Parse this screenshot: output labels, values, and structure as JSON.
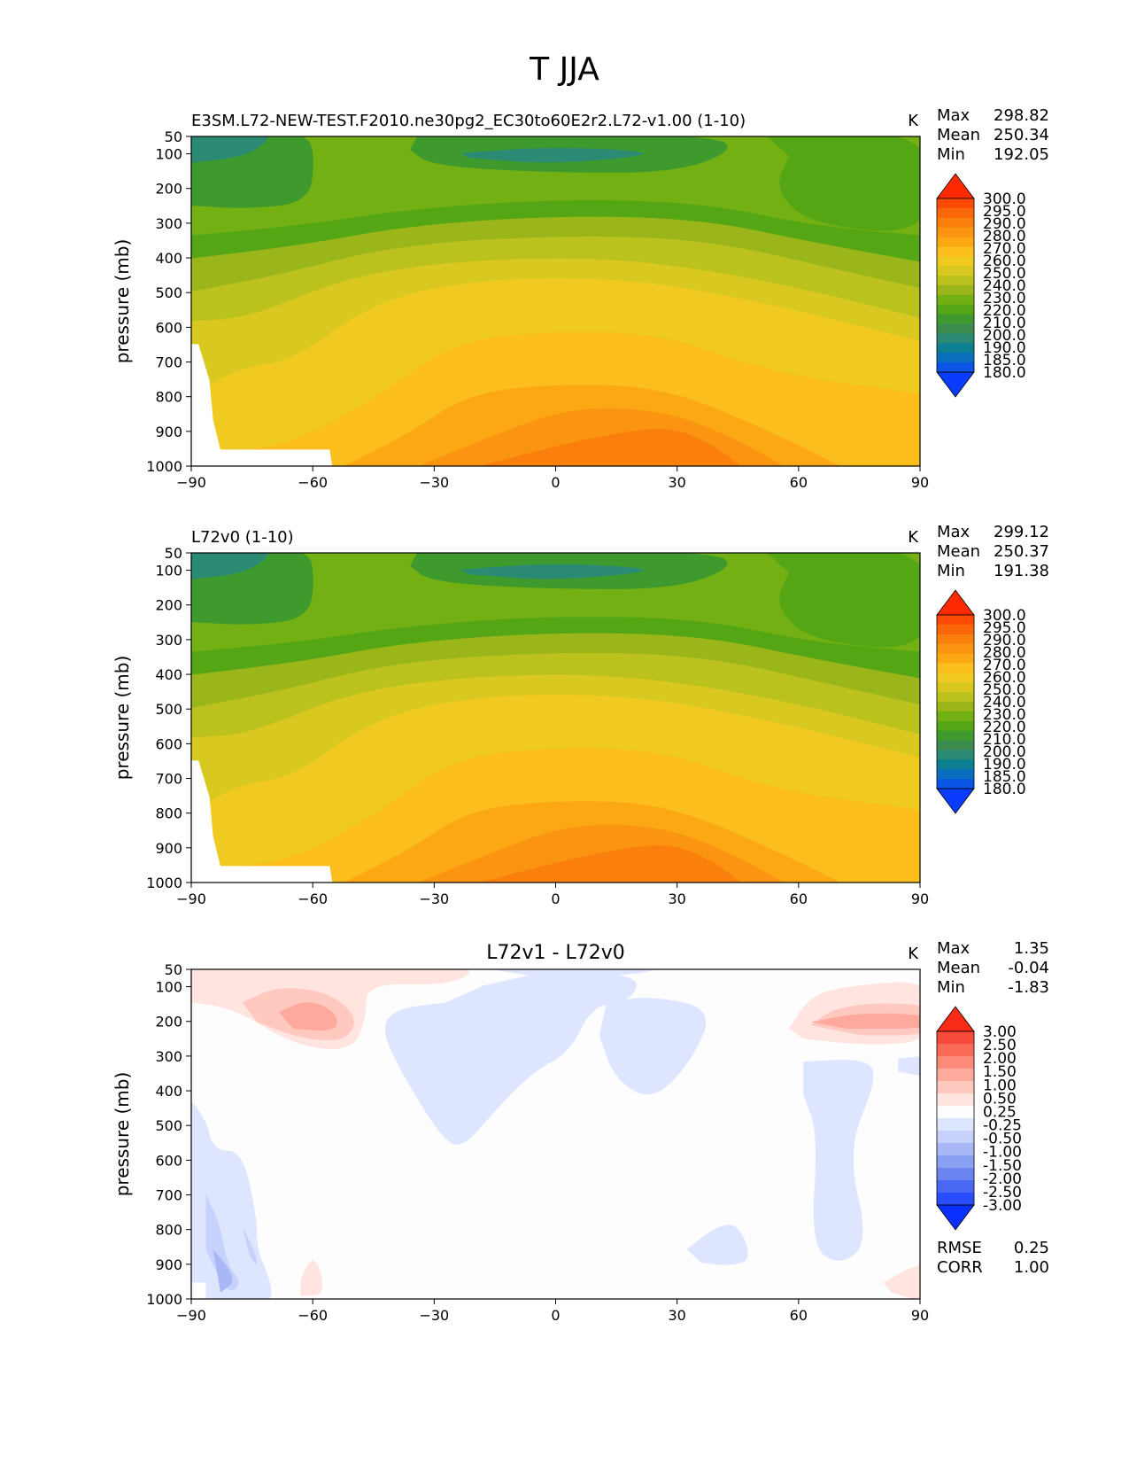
{
  "figure_title": "T JJA",
  "colors": {
    "abs_levels": [
      "#0a3cff",
      "#0a55e6",
      "#0a6ebe",
      "#0d7f92",
      "#2a8a74",
      "#3b8b4e",
      "#3e9a2c",
      "#55a614",
      "#73b014",
      "#9ab61a",
      "#bbc21e",
      "#d9c820",
      "#f0ca20",
      "#fbbe1c",
      "#fba814",
      "#fb9410",
      "#fb7f0c",
      "#fb6608",
      "#fb4a06",
      "#ff2a00"
    ],
    "diff_levels": [
      "#0a30ff",
      "#2a4dfb",
      "#4a68f4",
      "#6a84f0",
      "#8aa0f2",
      "#a8b8f6",
      "#c6d2fb",
      "#dde5ff",
      "#fdfdfd",
      "#ffe4e0",
      "#ffc9c0",
      "#fdaa9c",
      "#fb8a78",
      "#f96a58",
      "#f84a3a",
      "#f82a18"
    ]
  },
  "panels": [
    {
      "id": "test",
      "title_left": "E3SM.L72-NEW-TEST.F2010.ne30pg2_EC30to60E2r2.L72-v1.00 (1-10)",
      "title_center": "",
      "units": "K",
      "stats": [
        {
          "label": "Max",
          "value": "298.82"
        },
        {
          "label": "Mean",
          "value": "250.34"
        },
        {
          "label": "Min",
          "value": "192.05"
        }
      ],
      "colorbar_labels": [
        "300.0",
        "295.0",
        "290.0",
        "280.0",
        "270.0",
        "260.0",
        "250.0",
        "240.0",
        "230.0",
        "220.0",
        "210.0",
        "200.0",
        "190.0",
        "185.0",
        "180.0"
      ],
      "extra_stats": []
    },
    {
      "id": "ref",
      "title_left": "L72v0 (1-10)",
      "title_center": "",
      "units": "K",
      "stats": [
        {
          "label": "Max",
          "value": "299.12"
        },
        {
          "label": "Mean",
          "value": "250.37"
        },
        {
          "label": "Min",
          "value": "191.38"
        }
      ],
      "colorbar_labels": [
        "300.0",
        "295.0",
        "290.0",
        "280.0",
        "270.0",
        "260.0",
        "250.0",
        "240.0",
        "230.0",
        "220.0",
        "210.0",
        "200.0",
        "190.0",
        "185.0",
        "180.0"
      ],
      "extra_stats": []
    },
    {
      "id": "diff",
      "title_left": "",
      "title_center": "L72v1 - L72v0",
      "units": "K",
      "stats": [
        {
          "label": "Max",
          "value": "1.35"
        },
        {
          "label": "Mean",
          "value": "-0.04"
        },
        {
          "label": "Min",
          "value": "-1.83"
        }
      ],
      "colorbar_labels": [
        "3.00",
        "2.50",
        "2.00",
        "1.50",
        "1.00",
        "0.50",
        "0.25",
        "-0.25",
        "-0.50",
        "-1.00",
        "-1.50",
        "-2.00",
        "-2.50",
        "-3.00"
      ],
      "extra_stats": [
        {
          "label": "RMSE",
          "value": "0.25"
        },
        {
          "label": "CORR",
          "value": "1.00"
        }
      ]
    }
  ],
  "chart_data": [
    {
      "type": "heatmap",
      "title": "E3SM.L72-NEW-TEST.F2010.ne30pg2_EC30to60E2r2.L72-v1.00 (1-10)",
      "xlabel": "",
      "ylabel": "pressure (mb)",
      "xlim": [
        -90,
        90
      ],
      "ylim": [
        1000,
        50
      ],
      "xticks": [
        -90,
        -60,
        -30,
        0,
        30,
        60,
        90
      ],
      "xtick_labels": [
        "−90",
        "−60",
        "−30",
        "0",
        "30",
        "60",
        "90"
      ],
      "yticks": [
        50,
        100,
        200,
        300,
        400,
        500,
        600,
        700,
        800,
        900,
        1000
      ],
      "ytick_labels": [
        "50",
        "100",
        "200",
        "300",
        "400",
        "500",
        "600",
        "700",
        "800",
        "900",
        "1000"
      ],
      "levels": [
        180,
        185,
        190,
        200,
        210,
        220,
        230,
        240,
        250,
        260,
        270,
        280,
        290,
        295,
        300
      ],
      "units": "K",
      "max": 298.82,
      "mean": 250.34,
      "min": 192.05,
      "approx_values": {
        "lat": [
          -90,
          -60,
          -30,
          0,
          30,
          60,
          90
        ],
        "pressure_mb": [
          100,
          300,
          500,
          700,
          900
        ],
        "T": [
          [
            202,
            210,
            212,
            198,
            212,
            218,
            224
          ],
          [
            205,
            220,
            232,
            236,
            232,
            222,
            224
          ],
          [
            238,
            248,
            258,
            262,
            258,
            250,
            248
          ],
          [
            240,
            258,
            274,
            280,
            278,
            270,
            264
          ],
          [
            250,
            270,
            284,
            292,
            296,
            284,
            272
          ]
        ]
      }
    },
    {
      "type": "heatmap",
      "title": "L72v0 (1-10)",
      "xlabel": "",
      "ylabel": "pressure (mb)",
      "xlim": [
        -90,
        90
      ],
      "ylim": [
        1000,
        50
      ],
      "xticks": [
        -90,
        -60,
        -30,
        0,
        30,
        60,
        90
      ],
      "xtick_labels": [
        "−90",
        "−60",
        "−30",
        "0",
        "30",
        "60",
        "90"
      ],
      "yticks": [
        50,
        100,
        200,
        300,
        400,
        500,
        600,
        700,
        800,
        900,
        1000
      ],
      "ytick_labels": [
        "50",
        "100",
        "200",
        "300",
        "400",
        "500",
        "600",
        "700",
        "800",
        "900",
        "1000"
      ],
      "levels": [
        180,
        185,
        190,
        200,
        210,
        220,
        230,
        240,
        250,
        260,
        270,
        280,
        290,
        295,
        300
      ],
      "units": "K",
      "max": 299.12,
      "mean": 250.37,
      "min": 191.38
    },
    {
      "type": "heatmap",
      "title": "L72v1 - L72v0",
      "xlabel": "",
      "ylabel": "pressure (mb)",
      "xlim": [
        -90,
        90
      ],
      "ylim": [
        1000,
        50
      ],
      "xticks": [
        -90,
        -60,
        -30,
        0,
        30,
        60,
        90
      ],
      "xtick_labels": [
        "−90",
        "−60",
        "−30",
        "0",
        "30",
        "60",
        "90"
      ],
      "yticks": [
        50,
        100,
        200,
        300,
        400,
        500,
        600,
        700,
        800,
        900,
        1000
      ],
      "ytick_labels": [
        "50",
        "100",
        "200",
        "300",
        "400",
        "500",
        "600",
        "700",
        "800",
        "900",
        "1000"
      ],
      "levels": [
        -3.0,
        -2.5,
        -2.0,
        -1.5,
        -1.0,
        -0.5,
        -0.25,
        0.25,
        0.5,
        1.0,
        1.5,
        2.0,
        2.5,
        3.0
      ],
      "units": "K",
      "max": 1.35,
      "mean": -0.04,
      "min": -1.83,
      "rmse": 0.25,
      "corr": 1.0
    }
  ]
}
